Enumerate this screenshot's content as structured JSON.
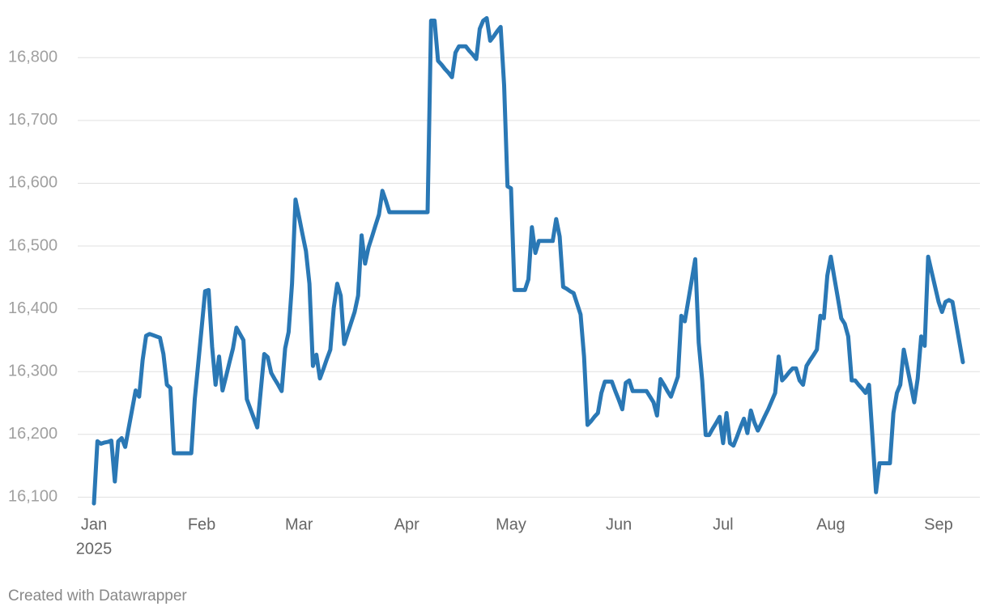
{
  "chart_data": {
    "type": "line",
    "categories": [
      "Jan",
      null,
      null,
      null,
      null,
      null,
      null,
      null,
      null,
      null,
      null,
      null,
      null,
      null,
      null,
      null,
      null,
      null,
      null,
      null,
      null,
      null,
      null,
      null,
      null,
      null,
      null,
      null,
      null,
      null,
      null,
      "Feb",
      null,
      null,
      null,
      null,
      null,
      null,
      null,
      null,
      null,
      null,
      null,
      null,
      null,
      null,
      null,
      null,
      null,
      null,
      null,
      null,
      null,
      null,
      null,
      null,
      null,
      null,
      null,
      "Mar",
      null,
      null,
      null,
      null,
      null,
      null,
      null,
      null,
      null,
      null,
      null,
      null,
      null,
      null,
      null,
      null,
      null,
      null,
      null,
      null,
      null,
      null,
      null,
      null,
      null,
      null,
      null,
      null,
      null,
      null,
      "Apr",
      null,
      null,
      null,
      null,
      null,
      null,
      null,
      null,
      null,
      null,
      null,
      null,
      null,
      null,
      null,
      null,
      null,
      null,
      null,
      null,
      null,
      null,
      null,
      null,
      null,
      null,
      null,
      null,
      null,
      "May",
      null,
      null,
      null,
      null,
      null,
      null,
      null,
      null,
      null,
      null,
      null,
      null,
      null,
      null,
      null,
      null,
      null,
      null,
      null,
      null,
      null,
      null,
      null,
      null,
      null,
      null,
      null,
      null,
      null,
      null,
      "Jun",
      null,
      null,
      null,
      null,
      null,
      null,
      null,
      null,
      null,
      null,
      null,
      null,
      null,
      null,
      null,
      null,
      null,
      null,
      null,
      null,
      null,
      null,
      null,
      null,
      null,
      null,
      null,
      null,
      null,
      "Jul",
      null,
      null,
      null,
      null,
      null,
      null,
      null,
      null,
      null,
      null,
      null,
      null,
      null,
      null,
      null,
      null,
      null,
      null,
      null,
      null,
      null,
      null,
      null,
      null,
      null,
      null,
      null,
      null,
      null,
      null,
      "Aug",
      null,
      null,
      null,
      null,
      null,
      null,
      null,
      null,
      null,
      null,
      null,
      null,
      null,
      null,
      null,
      null,
      null,
      null,
      null,
      null,
      null,
      null,
      null,
      null,
      null,
      null,
      null,
      null,
      null,
      null,
      "Sep",
      null,
      null,
      null,
      null,
      null,
      null,
      null
    ],
    "year_label": "2025",
    "series": [
      {
        "color": "#2a78b5",
        "values": [
          16090,
          16189,
          16185,
          16187,
          16188,
          16190,
          16125,
          16189,
          16194,
          16180,
          16210,
          16240,
          16270,
          16260,
          16318,
          16357,
          16360,
          16358,
          16356,
          16354,
          16328,
          16279,
          16274,
          16170,
          16170,
          16170,
          16170,
          16170,
          16170,
          16256,
          16313,
          16371,
          16428,
          16430,
          16340,
          16279,
          16324,
          16270,
          16292,
          16315,
          16337,
          16370,
          16360,
          16350,
          16256,
          16241,
          16226,
          16211,
          16270,
          16328,
          16323,
          16298,
          16288,
          16279,
          16269,
          16337,
          16363,
          16440,
          16574,
          16547,
          16519,
          16492,
          16440,
          16309,
          16327,
          16289,
          16304,
          16320,
          16335,
          16401,
          16440,
          16421,
          16344,
          16361,
          16378,
          16395,
          16421,
          16517,
          16472,
          16498,
          16515,
          16533,
          16550,
          16588,
          16572,
          16554,
          16554,
          16554,
          16554,
          16554,
          16554,
          16554,
          16554,
          16554,
          16554,
          16554,
          16554,
          16859,
          16859,
          16795,
          16789,
          16782,
          16776,
          16769,
          16808,
          16818,
          16818,
          16818,
          16811,
          16805,
          16798,
          16846,
          16859,
          16863,
          16827,
          16834,
          16842,
          16849,
          16756,
          16595,
          16592,
          16430,
          16430,
          16430,
          16430,
          16447,
          16530,
          16489,
          16508,
          16508,
          16508,
          16508,
          16508,
          16543,
          16515,
          16435,
          16432,
          16428,
          16425,
          16408,
          16391,
          16324,
          16215,
          16221,
          16228,
          16234,
          16266,
          16284,
          16284,
          16284,
          16269,
          16255,
          16240,
          16282,
          16286,
          16269,
          16269,
          16269,
          16269,
          16269,
          16260,
          16251,
          16230,
          16288,
          16279,
          16269,
          16260,
          16276,
          16292,
          16389,
          16380,
          16413,
          16446,
          16479,
          16346,
          16286,
          16199,
          16199,
          16209,
          16218,
          16228,
          16186,
          16234,
          16186,
          16182,
          16196,
          16211,
          16225,
          16202,
          16238,
          16219,
          16206,
          16217,
          16229,
          16240,
          16253,
          16266,
          16324,
          16286,
          16292,
          16299,
          16305,
          16305,
          16286,
          16279,
          16309,
          16318,
          16326,
          16335,
          16389,
          16385,
          16453,
          16483,
          16450,
          16418,
          16385,
          16376,
          16356,
          16286,
          16286,
          16279,
          16273,
          16266,
          16279,
          16195,
          16108,
          16154,
          16154,
          16154,
          16154,
          16234,
          16266,
          16279,
          16335,
          16307,
          16279,
          16251,
          16289,
          16356,
          16341,
          16483,
          16459,
          16435,
          16411,
          16395,
          16411,
          16414,
          16411,
          16379,
          16347,
          16315
        ]
      }
    ],
    "ylim": [
      16085,
      16870
    ],
    "yticks": [
      {
        "value": 16100,
        "label": "16,100"
      },
      {
        "value": 16200,
        "label": "16,200"
      },
      {
        "value": 16300,
        "label": "16,300"
      },
      {
        "value": 16400,
        "label": "16,400"
      },
      {
        "value": 16500,
        "label": "16,500"
      },
      {
        "value": 16600,
        "label": "16,600"
      },
      {
        "value": 16700,
        "label": "16,700"
      },
      {
        "value": 16800,
        "label": "16,800"
      }
    ],
    "grid": true,
    "footer": "Created with Datawrapper"
  }
}
